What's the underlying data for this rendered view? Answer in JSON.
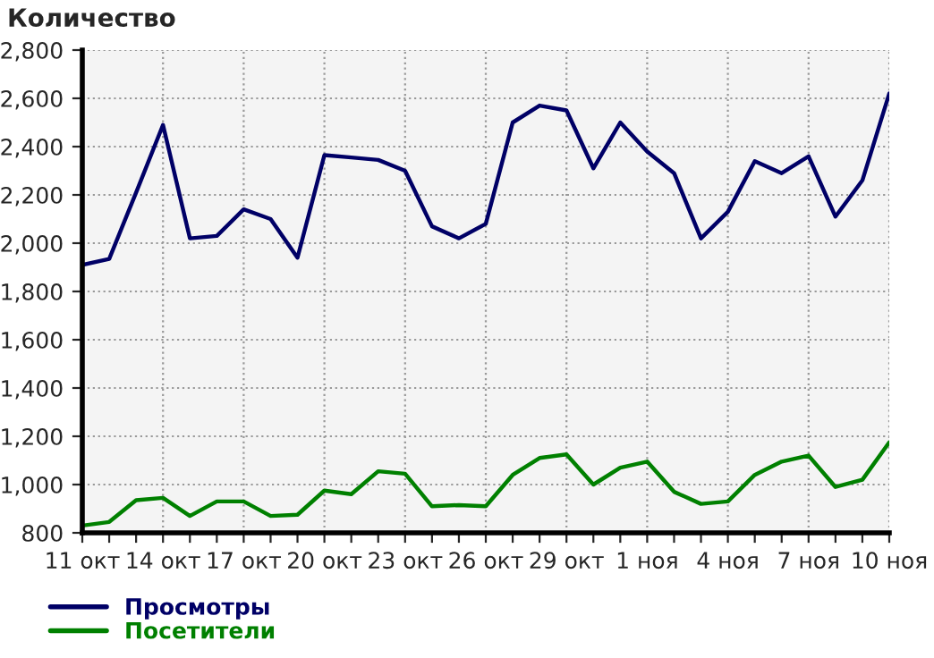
{
  "chart_data": {
    "type": "line",
    "title": "Количество",
    "categories": [
      "11 окт",
      null,
      null,
      "14 окт",
      null,
      null,
      "17 окт",
      null,
      null,
      "20 окт",
      null,
      null,
      "23 окт",
      null,
      null,
      "26 окт",
      null,
      null,
      "29 окт",
      null,
      null,
      "1 ноя",
      null,
      null,
      "4 ноя",
      null,
      null,
      "7 ноя",
      null,
      null,
      "10 ноя"
    ],
    "series": [
      {
        "name": "Просмотры",
        "color": "#000066",
        "values": [
          1910,
          1935,
          2210,
          2490,
          2020,
          2030,
          2140,
          2100,
          1940,
          2365,
          2355,
          2345,
          2300,
          2070,
          2020,
          2080,
          2500,
          2570,
          2550,
          2310,
          2500,
          2380,
          2290,
          2020,
          2130,
          2340,
          2290,
          2360,
          2110,
          2260,
          2620
        ]
      },
      {
        "name": "Посетители",
        "color": "#008000",
        "values": [
          830,
          845,
          935,
          945,
          870,
          930,
          930,
          870,
          875,
          975,
          960,
          1055,
          1045,
          910,
          915,
          910,
          1040,
          1110,
          1125,
          1000,
          1070,
          1095,
          970,
          920,
          930,
          1040,
          1095,
          1120,
          990,
          1020,
          1175
        ]
      }
    ],
    "ylim": [
      800,
      2800
    ],
    "yticks": [
      {
        "value": 800,
        "label": "800"
      },
      {
        "value": 1000,
        "label": "1,000"
      },
      {
        "value": 1200,
        "label": "1,200"
      },
      {
        "value": 1400,
        "label": "1,400"
      },
      {
        "value": 1600,
        "label": "1,600"
      },
      {
        "value": 1800,
        "label": "1,800"
      },
      {
        "value": 2000,
        "label": "2,000"
      },
      {
        "value": 2200,
        "label": "2,200"
      },
      {
        "value": 2400,
        "label": "2,400"
      },
      {
        "value": 2600,
        "label": "2,600"
      },
      {
        "value": 2800,
        "label": "2,800"
      }
    ],
    "grid": true,
    "legend": "bottom left",
    "line_style": "solid",
    "marker": "none"
  }
}
